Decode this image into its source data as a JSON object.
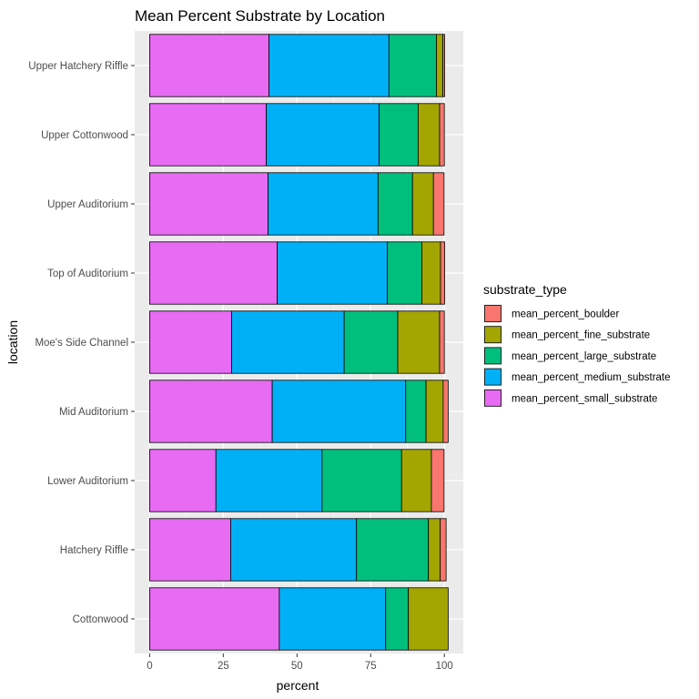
{
  "chart_data": {
    "type": "bar",
    "orientation": "horizontal",
    "stacked": true,
    "title": "Mean Percent Substrate by Location",
    "xlabel": "percent",
    "ylabel": "location",
    "xlim": [
      0,
      100
    ],
    "x_ticks": [
      "0",
      "25",
      "50",
      "75",
      "100"
    ],
    "x_tick_values": [
      0,
      25,
      50,
      75,
      100
    ],
    "grid": true,
    "legend_position": "right",
    "legend_title": "substrate_type",
    "categories": [
      "Upper Hatchery Riffle",
      "Upper Cottonwood",
      "Upper Auditorium",
      "Top of Auditorium",
      "Moe's Side Channel",
      "Mid Auditorium",
      "Lower Auditorium",
      "Hatchery Riffle",
      "Cottonwood"
    ],
    "stack_order": [
      "mean_percent_small_substrate",
      "mean_percent_medium_substrate",
      "mean_percent_large_substrate",
      "mean_percent_fine_substrate",
      "mean_percent_boulder"
    ],
    "series": [
      {
        "name": "mean_percent_boulder",
        "color": "#F8766D",
        "values": [
          0.6,
          1.6,
          3.6,
          1.4,
          1.6,
          1.7,
          4.3,
          2.0,
          0.0
        ]
      },
      {
        "name": "mean_percent_fine_substrate",
        "color": "#A3A500",
        "values": [
          2.2,
          7.3,
          7.1,
          6.3,
          14.2,
          5.8,
          10.1,
          4.0,
          13.5
        ]
      },
      {
        "name": "mean_percent_large_substrate",
        "color": "#00BF7D",
        "values": [
          16.1,
          13.2,
          11.7,
          11.7,
          18.2,
          6.9,
          27.0,
          24.4,
          7.7
        ]
      },
      {
        "name": "mean_percent_medium_substrate",
        "color": "#00B0F6",
        "values": [
          40.7,
          38.3,
          37.3,
          37.4,
          38.2,
          45.3,
          36.0,
          42.7,
          36.1
        ]
      },
      {
        "name": "mean_percent_small_substrate",
        "color": "#E76BF3",
        "values": [
          40.5,
          39.6,
          40.2,
          43.3,
          27.8,
          41.6,
          22.5,
          27.5,
          44.0
        ]
      }
    ]
  }
}
